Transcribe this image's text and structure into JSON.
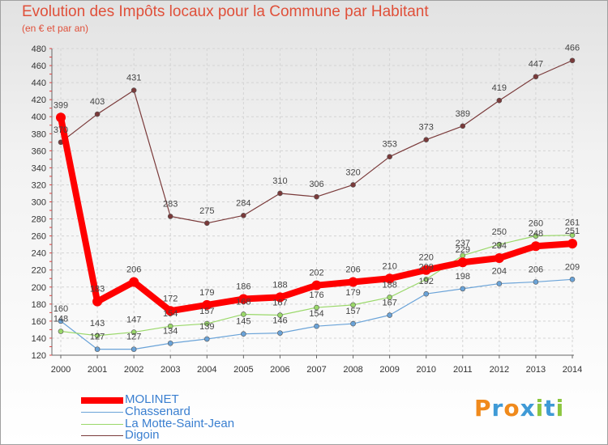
{
  "title": "Evolution des Impôts locaux pour la Commune par Habitant",
  "subtitle": "(en € et par an)",
  "logo": {
    "text": "Proxiti",
    "colors": [
      "#f08a1c",
      "#3f9ad6",
      "#f08a1c",
      "#3f9ad6",
      "#8cc63f",
      "#3f9ad6",
      "#8cc63f"
    ]
  },
  "chart_data": {
    "type": "line",
    "x": [
      2000,
      2001,
      2002,
      2003,
      2004,
      2005,
      2006,
      2007,
      2008,
      2009,
      2010,
      2011,
      2012,
      2013,
      2014
    ],
    "ylim": [
      120,
      480
    ],
    "yticks": [
      120,
      140,
      160,
      180,
      200,
      220,
      240,
      260,
      280,
      300,
      320,
      340,
      360,
      380,
      400,
      420,
      440,
      460,
      480
    ],
    "grid": true,
    "legend_position": "bottom-left",
    "series": [
      {
        "name": "MOLINET",
        "color": "#ff0000",
        "values": [
          399,
          183,
          206,
          172,
          179,
          186,
          188,
          202,
          206,
          210,
          220,
          229,
          234,
          248,
          251
        ]
      },
      {
        "name": "Chassenard",
        "color": "#6aa3d8",
        "values": [
          160,
          127,
          127,
          134,
          139,
          145,
          146,
          154,
          157,
          167,
          192,
          198,
          204,
          206,
          209
        ]
      },
      {
        "name": "La Motte-Saint-Jean",
        "color": "#9ad86a",
        "values": [
          148,
          143,
          147,
          154,
          157,
          168,
          167,
          176,
          179,
          188,
          209,
          237,
          250,
          260,
          261
        ]
      },
      {
        "name": "Digoin",
        "color": "#7a3a3a",
        "values": [
          370,
          403,
          431,
          283,
          275,
          284,
          310,
          306,
          320,
          353,
          373,
          389,
          419,
          447,
          466
        ]
      }
    ]
  }
}
